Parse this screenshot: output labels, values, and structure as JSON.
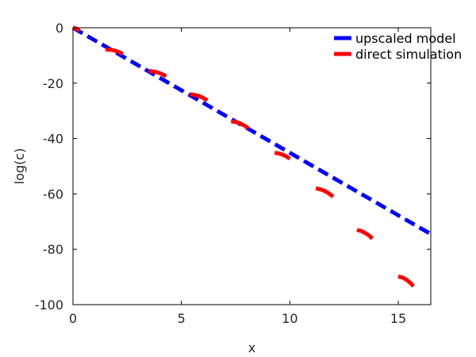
{
  "chart_data": {
    "type": "line",
    "xlabel": "x",
    "ylabel": "log(c)",
    "xlim": [
      0,
      16.5
    ],
    "ylim": [
      -100,
      0
    ],
    "xticks": [
      0,
      5,
      10,
      15
    ],
    "yticks": [
      0,
      -20,
      -40,
      -60,
      -80,
      -100
    ],
    "grid": false,
    "legend_position": "top-right",
    "series": [
      {
        "name": "upscaled model",
        "color": "#0000ff",
        "style": "dashed",
        "x": [
          0,
          16.5
        ],
        "y": [
          0,
          -74.5
        ]
      },
      {
        "name": "direct simulation",
        "color": "#ff0000",
        "style": "dashed-segments",
        "segments": [
          {
            "x": [
              0,
              0.1,
              0.2,
              0.3
            ],
            "y": [
              0,
              -0.2,
              -0.5,
              -1.0
            ]
          },
          {
            "x": [
              1.5,
              1.7,
              1.9,
              2.1,
              2.3
            ],
            "y": [
              -7.8,
              -7.9,
              -8.2,
              -8.7,
              -9.4
            ]
          },
          {
            "x": [
              3.5,
              3.7,
              3.9,
              4.1,
              4.3
            ],
            "y": [
              -15.6,
              -15.8,
              -16.1,
              -16.7,
              -17.5
            ]
          },
          {
            "x": [
              5.4,
              5.6,
              5.8,
              6.0,
              6.2
            ],
            "y": [
              -24.0,
              -24.2,
              -24.6,
              -25.3,
              -26.2
            ]
          },
          {
            "x": [
              7.3,
              7.5,
              7.7,
              7.9,
              8.1
            ],
            "y": [
              -33.8,
              -34.0,
              -34.5,
              -35.3,
              -36.3
            ]
          },
          {
            "x": [
              9.3,
              9.5,
              9.7,
              9.9,
              10.0
            ],
            "y": [
              -45.2,
              -45.4,
              -45.9,
              -46.7,
              -47.4
            ]
          },
          {
            "x": [
              11.2,
              11.4,
              11.6,
              11.8,
              12.0
            ],
            "y": [
              -58.0,
              -58.3,
              -58.9,
              -59.8,
              -61.0
            ]
          },
          {
            "x": [
              13.1,
              13.3,
              13.5,
              13.7,
              13.8
            ],
            "y": [
              -73.0,
              -73.4,
              -74.2,
              -75.3,
              -76.2
            ]
          },
          {
            "x": [
              15.0,
              15.2,
              15.4,
              15.6,
              15.7
            ],
            "y": [
              -89.8,
              -90.2,
              -91.1,
              -92.4,
              -93.4
            ]
          }
        ]
      }
    ]
  }
}
